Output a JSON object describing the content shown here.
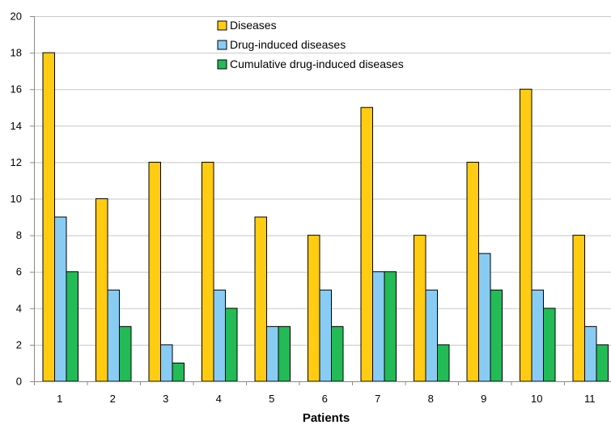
{
  "chart_data": {
    "type": "bar",
    "title": "",
    "xlabel": "Patients",
    "ylabel": "",
    "categories": [
      "1",
      "2",
      "3",
      "4",
      "5",
      "6",
      "7",
      "8",
      "9",
      "10",
      "11"
    ],
    "ylim": [
      0,
      20
    ],
    "yticks": [
      0,
      2,
      4,
      6,
      8,
      10,
      12,
      14,
      16,
      18,
      20
    ],
    "grid": "horizontal",
    "legend_position": "top-center",
    "series": [
      {
        "name": "Diseases",
        "color": "#FFCC11",
        "values": [
          18,
          10,
          12,
          12,
          9,
          8,
          15,
          8,
          12,
          16,
          8
        ]
      },
      {
        "name": "Drug-induced diseases",
        "color": "#88CCF4",
        "values": [
          9,
          5,
          2,
          5,
          3,
          5,
          6,
          5,
          7,
          5,
          3
        ]
      },
      {
        "name": "Cumulative drug-induced diseases",
        "color": "#22BB55",
        "values": [
          6,
          3,
          1,
          4,
          3,
          3,
          6,
          2,
          5,
          4,
          2
        ]
      }
    ]
  }
}
